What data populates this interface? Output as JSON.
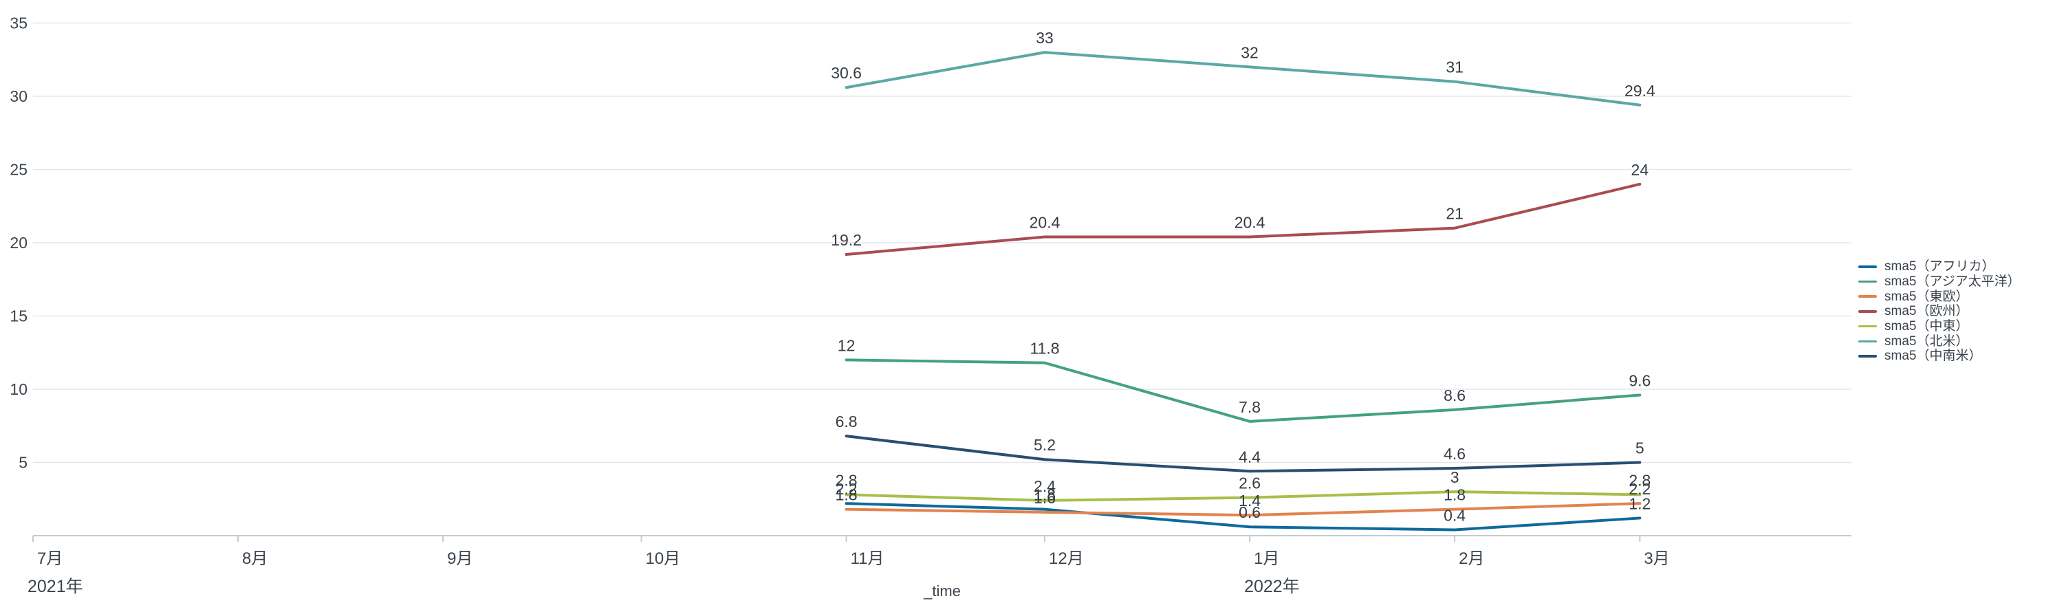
{
  "chart_data": {
    "type": "line",
    "title": "",
    "x_axis": {
      "label": "_time",
      "total_days": 275,
      "ticks": [
        {
          "label": "7月",
          "day": 0
        },
        {
          "label": "8月",
          "day": 31
        },
        {
          "label": "9月",
          "day": 62
        },
        {
          "label": "10月",
          "day": 92
        },
        {
          "label": "11月",
          "day": 123
        },
        {
          "label": "12月",
          "day": 153
        },
        {
          "label": "1月",
          "day": 184
        },
        {
          "label": "2月",
          "day": 215
        },
        {
          "label": "3月",
          "day": 243
        }
      ],
      "year_labels": [
        {
          "text": "2021年",
          "day": 0
        },
        {
          "text": "2022年",
          "day": 184
        }
      ]
    },
    "y_axis": {
      "min": 0,
      "max": 35,
      "tick_interval": 5,
      "tick_labels": [
        "5",
        "10",
        "15",
        "20",
        "25",
        "30",
        "35"
      ]
    },
    "dates_with_data": [
      "2021-11",
      "2021-12",
      "2022-01",
      "2022-02",
      "2022-03"
    ],
    "data_days": [
      123,
      153,
      184,
      215,
      243
    ],
    "series": [
      {
        "name": "sma5（アフリカ）",
        "color": "#0f6a9c",
        "values": [
          2.2,
          1.8,
          0.6,
          0.4,
          1.2
        ]
      },
      {
        "name": "sma5（アジア太平洋）",
        "color": "#45a27b",
        "values": [
          12,
          11.8,
          7.8,
          8.6,
          9.6
        ]
      },
      {
        "name": "sma5（東欧）",
        "color": "#e2834f",
        "values": [
          1.8,
          1.6,
          1.4,
          1.8,
          2.2
        ]
      },
      {
        "name": "sma5（欧州）",
        "color": "#a84d50",
        "values": [
          19.2,
          20.4,
          20.4,
          21,
          24
        ]
      },
      {
        "name": "sma5（中東）",
        "color": "#a6bf4b",
        "values": [
          2.8,
          2.4,
          2.6,
          3,
          2.8
        ]
      },
      {
        "name": "sma5（北米）",
        "color": "#5ba8a5",
        "values": [
          30.6,
          33,
          32,
          31,
          29.4
        ]
      },
      {
        "name": "sma5（中南米）",
        "color": "#294e70",
        "values": [
          6.8,
          5.2,
          4.4,
          4.6,
          5
        ]
      }
    ],
    "legend_position": "right",
    "grid": "horizontal",
    "xlabel": "_time",
    "ylabel": "",
    "ylim": [
      0,
      35
    ]
  },
  "styles": {
    "background": "#ffffff",
    "grid_color": "#e4e7eb",
    "axis_color": "#c3cbd4",
    "axis_text_color": "#3c444d",
    "value_label_color": "#363c43"
  }
}
